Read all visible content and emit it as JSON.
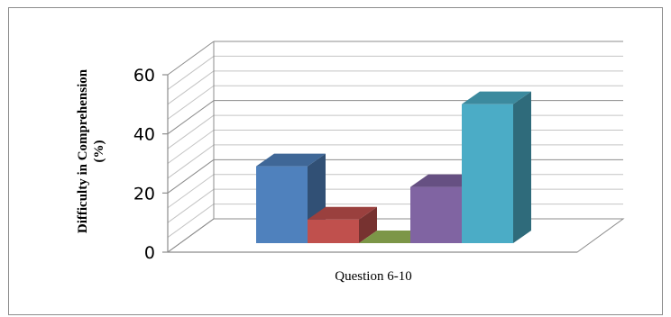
{
  "chart_data": {
    "type": "bar",
    "style": "3d-clustered-column",
    "categories": [
      "Question 6-10"
    ],
    "series": [
      {
        "values": [
          26
        ],
        "color": "#4f81bd"
      },
      {
        "values": [
          8
        ],
        "color": "#c0504d"
      },
      {
        "values": [
          0
        ],
        "color": "#9bbb59"
      },
      {
        "values": [
          19
        ],
        "color": "#8064a2"
      },
      {
        "values": [
          47
        ],
        "color": "#4bacc6"
      }
    ],
    "title": "",
    "xlabel": "",
    "ylabel_line1": "Difficulty in Comprehension",
    "ylabel_line2": "(%)",
    "ylim": [
      0,
      60
    ],
    "yticks": [
      "0",
      "20",
      "40",
      "60"
    ],
    "grid": true,
    "legend": "none"
  }
}
